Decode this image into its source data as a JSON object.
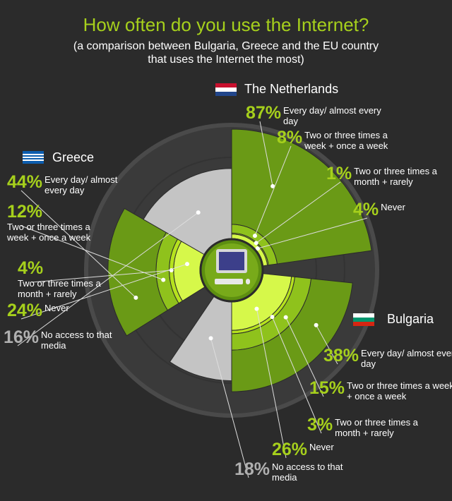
{
  "chart_data": {
    "type": "radial-stack",
    "title": "How often do you use the Internet?",
    "subtitle": "(a comparison between Bulgaria, Greece and the EU country that uses the Internet the most)",
    "categories": [
      "Every day/ almost every day",
      "Two or three times a week + once a week",
      "Two or three times a month + rarely",
      "Never",
      "No access to that media"
    ],
    "colors": [
      "#6a9a16",
      "#8fc21c",
      "#b6e21e",
      "#d6f84a",
      "#c4c4c4"
    ],
    "series": [
      {
        "name": "The Netherlands",
        "values": [
          87,
          8,
          1,
          4,
          null
        ],
        "value_labels": [
          "87%",
          "8%",
          "1%",
          "4%",
          null
        ]
      },
      {
        "name": "Greece",
        "values": [
          44,
          12,
          4,
          24,
          16
        ],
        "value_labels": [
          "44%",
          "12%",
          "4%",
          "24%",
          "16%"
        ]
      },
      {
        "name": "Bulgaria",
        "values": [
          38,
          15,
          3,
          26,
          18
        ],
        "value_labels": [
          "38%",
          "15%",
          "3%",
          "26%",
          "18%"
        ]
      }
    ]
  }
}
